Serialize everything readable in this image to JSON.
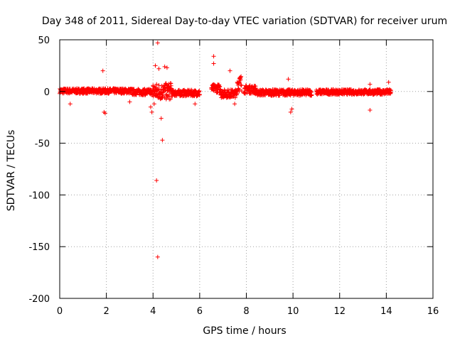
{
  "chart_data": {
    "type": "scatter",
    "title": "Day 348 of 2011, Sidereal Day-to-day VTEC variation (SDTVAR) for receiver urum",
    "xlabel": "GPS time / hours",
    "ylabel": "SDTVAR / TECUs",
    "xlim": [
      0,
      16
    ],
    "ylim": [
      -200,
      50
    ],
    "xticks": [
      0,
      2,
      4,
      6,
      8,
      10,
      12,
      14,
      16
    ],
    "yticks": [
      -200,
      -150,
      -100,
      -50,
      0,
      50
    ],
    "xtick_labels": [
      "0",
      "2",
      "4",
      "6",
      "8",
      "10",
      "12",
      "14",
      "16"
    ],
    "ytick_labels": [
      "-200",
      "-150",
      "-100",
      "-50",
      "0",
      "50"
    ],
    "grid": true,
    "marker": "+",
    "series_color": "#ff0000",
    "segments": [
      {
        "start": 0.0,
        "end": 3.1,
        "center": 0.5,
        "spread": 2.5
      },
      {
        "start": 3.1,
        "end": 4.0,
        "center": -0.5,
        "spread": 3.0
      },
      {
        "start": 4.0,
        "end": 4.8,
        "center": 0.0,
        "spread": 8.0
      },
      {
        "start": 4.8,
        "end": 6.0,
        "center": -1.5,
        "spread": 3.0
      },
      {
        "start": 6.5,
        "end": 6.9,
        "center": 3.0,
        "spread": 4.0
      },
      {
        "start": 6.9,
        "end": 7.6,
        "center": -2.0,
        "spread": 4.0
      },
      {
        "start": 7.6,
        "end": 7.8,
        "center": 8.0,
        "spread": 8.0
      },
      {
        "start": 7.9,
        "end": 8.4,
        "center": 2.0,
        "spread": 4.0
      },
      {
        "start": 8.4,
        "end": 10.8,
        "center": -1.0,
        "spread": 3.0
      },
      {
        "start": 11.0,
        "end": 14.2,
        "center": -0.5,
        "spread": 2.5
      }
    ],
    "outliers": [
      {
        "x": 0.45,
        "y": -12
      },
      {
        "x": 1.9,
        "y": -20
      },
      {
        "x": 1.95,
        "y": -21
      },
      {
        "x": 1.85,
        "y": 20
      },
      {
        "x": 3.0,
        "y": -10
      },
      {
        "x": 3.9,
        "y": -15
      },
      {
        "x": 3.95,
        "y": -20
      },
      {
        "x": 4.05,
        "y": -12
      },
      {
        "x": 4.1,
        "y": 25
      },
      {
        "x": 4.15,
        "y": -86
      },
      {
        "x": 4.2,
        "y": -160
      },
      {
        "x": 4.2,
        "y": 47
      },
      {
        "x": 4.25,
        "y": 22
      },
      {
        "x": 4.35,
        "y": -26
      },
      {
        "x": 4.4,
        "y": -47
      },
      {
        "x": 4.5,
        "y": 24
      },
      {
        "x": 4.6,
        "y": 23
      },
      {
        "x": 4.75,
        "y": 8
      },
      {
        "x": 5.8,
        "y": -12
      },
      {
        "x": 6.6,
        "y": 34
      },
      {
        "x": 6.6,
        "y": 27
      },
      {
        "x": 7.3,
        "y": 20
      },
      {
        "x": 7.5,
        "y": -12
      },
      {
        "x": 9.8,
        "y": 12
      },
      {
        "x": 9.9,
        "y": -20
      },
      {
        "x": 9.95,
        "y": -17
      },
      {
        "x": 13.3,
        "y": -18
      },
      {
        "x": 13.3,
        "y": 7
      },
      {
        "x": 14.1,
        "y": 9
      }
    ]
  }
}
